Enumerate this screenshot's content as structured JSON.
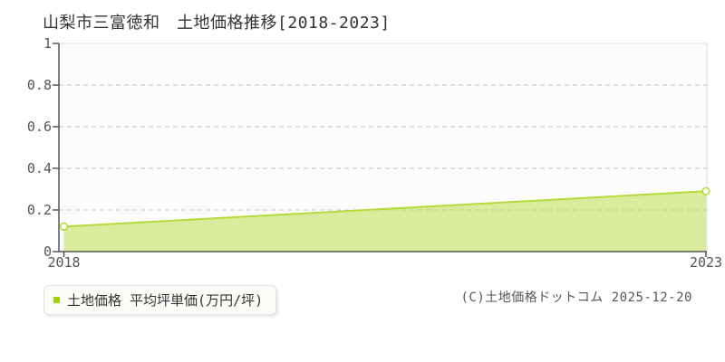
{
  "chart_data": {
    "type": "area",
    "title": "山梨市三富徳和　土地価格推移[2018-2023]",
    "x": [
      2018,
      2023
    ],
    "series": [
      {
        "name": "土地価格 平均坪単価(万円/坪)",
        "values": [
          0.12,
          0.29
        ]
      }
    ],
    "xlim": [
      2018,
      2023
    ],
    "ylim": [
      0,
      1
    ],
    "x_tick_labels": [
      "2018",
      "2023"
    ],
    "y_tick_labels": [
      "0",
      "0.2",
      "0.4",
      "0.6",
      "0.8",
      "1"
    ],
    "grid": "horizontal-dashed",
    "legend_position": "bottom-left",
    "marker": "hollow-circle"
  },
  "legend": {
    "label": "土地価格 平均坪単価(万円/坪)"
  },
  "footer": {
    "copyright": "(C)土地価格ドットコム 2025-12-20"
  },
  "colors": {
    "line": "#b6da3c",
    "fill": "#b6da3c",
    "fill_opacity": 0.5,
    "marker_fill": "#ffffff",
    "legend_marker": "#9ed30b",
    "grid": "#c5c5c5",
    "axis": "#555555",
    "plot_border_light": "#e6e6e6",
    "plot_bg": "#fcfcfc",
    "tick_text": "#555555",
    "title_text": "#333333",
    "legend_text": "#333333",
    "copyright_text": "#555555"
  }
}
